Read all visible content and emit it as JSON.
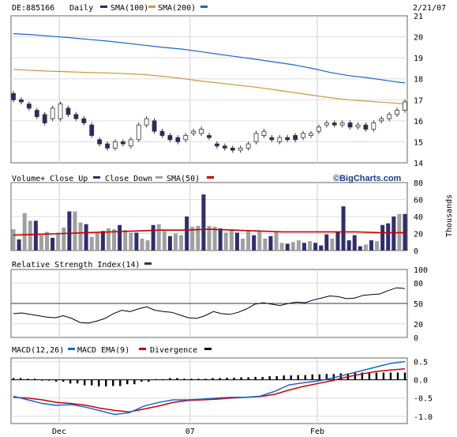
{
  "header": {
    "symbol": "DE:885166",
    "period": "Daily",
    "date": "2/21/07"
  },
  "colors": {
    "sma100": "#c89a3c",
    "sma200": "#1c64d6",
    "up": "#ffffff",
    "down": "#2a2a6a",
    "sma50vol": "#cc0000",
    "gray": "#a0a0a0",
    "navy": "#2e2e6e",
    "macd": "#1c64d6",
    "macdema": "#cc0000",
    "divergence": "#000000"
  },
  "price_panel": {
    "legend": [
      {
        "label": "SMA(100)",
        "color_key": "navy"
      },
      {
        "label": "SMA(200)",
        "color_key": "sma100"
      },
      {
        "label": "",
        "color_key": "sma200"
      }
    ]
  },
  "volume_panel": {
    "legend": [
      {
        "label": "Volume+ Close Up",
        "color_key": "gray"
      },
      {
        "label": "Close Down",
        "color_key": "navy"
      },
      {
        "label": "SMA(50)",
        "color_key": "gray"
      },
      {
        "label": "",
        "color_key": "sma50vol"
      }
    ],
    "brand": "©BigCharts.com",
    "unit": "Thousands"
  },
  "rsi_panel": {
    "label": "Relative Strength Index(14)"
  },
  "macd_panel": {
    "legend": [
      {
        "label": "MACD(12,26)",
        "color_key": "macd"
      },
      {
        "label": "MACD EMA(9)",
        "color_key": "macdema"
      },
      {
        "label": "Divergence",
        "color_key": "divergence"
      }
    ]
  },
  "chart_data": [
    {
      "type": "candlestick",
      "title": "DE:885166 Daily",
      "ylim": [
        14,
        21
      ],
      "yticks": [
        14,
        15,
        16,
        17,
        18,
        19,
        20,
        21
      ],
      "xticks": [
        {
          "label": "Dec",
          "index": 14
        },
        {
          "label": "07",
          "index": 50
        },
        {
          "label": "Feb",
          "index": 85
        }
      ],
      "series": [
        {
          "name": "SMA(100)",
          "values": [
            18.45,
            18.4,
            18.36,
            18.33,
            18.3,
            18.28,
            18.25,
            18.2,
            18.12,
            18.02,
            17.9,
            17.8,
            17.7,
            17.6,
            17.48,
            17.35,
            17.22,
            17.1,
            17.0,
            16.93,
            16.87,
            16.8
          ]
        },
        {
          "name": "SMA(200)",
          "values": [
            20.15,
            20.1,
            20.03,
            19.96,
            19.88,
            19.8,
            19.7,
            19.6,
            19.5,
            19.42,
            19.3,
            19.17,
            19.05,
            18.93,
            18.8,
            18.67,
            18.5,
            18.3,
            18.15,
            18.05,
            17.92,
            17.8
          ]
        }
      ],
      "candles": [
        [
          17.3,
          17.0
        ],
        [
          17.0,
          16.9
        ],
        [
          16.8,
          16.6
        ],
        [
          16.5,
          16.2
        ],
        [
          16.3,
          15.9
        ],
        [
          16.1,
          16.6
        ],
        [
          16.1,
          16.8
        ],
        [
          16.6,
          16.3
        ],
        [
          16.3,
          16.1
        ],
        [
          16.1,
          15.9
        ],
        [
          15.8,
          15.3
        ],
        [
          15.1,
          14.9
        ],
        [
          14.9,
          14.7
        ],
        [
          14.7,
          15.0
        ],
        [
          15.0,
          14.9
        ],
        [
          14.8,
          15.1
        ],
        [
          15.1,
          15.8
        ],
        [
          15.8,
          16.1
        ],
        [
          16.0,
          15.5
        ],
        [
          15.5,
          15.3
        ],
        [
          15.3,
          15.1
        ],
        [
          15.2,
          15.0
        ],
        [
          15.1,
          15.3
        ],
        [
          15.4,
          15.5
        ],
        [
          15.4,
          15.6
        ],
        [
          15.3,
          15.2
        ],
        [
          14.9,
          14.8
        ],
        [
          14.8,
          14.7
        ],
        [
          14.7,
          14.6
        ],
        [
          14.6,
          14.7
        ],
        [
          14.7,
          14.9
        ],
        [
          15.0,
          15.4
        ],
        [
          15.3,
          15.5
        ],
        [
          15.2,
          15.1
        ],
        [
          15.0,
          15.2
        ],
        [
          15.2,
          15.1
        ],
        [
          15.3,
          15.1
        ],
        [
          15.2,
          15.4
        ],
        [
          15.3,
          15.4
        ],
        [
          15.5,
          15.7
        ],
        [
          15.8,
          15.9
        ],
        [
          15.9,
          15.8
        ],
        [
          15.8,
          15.9
        ],
        [
          15.9,
          15.7
        ],
        [
          15.7,
          15.8
        ],
        [
          15.8,
          15.6
        ],
        [
          15.6,
          15.9
        ],
        [
          16.0,
          16.1
        ],
        [
          16.1,
          16.3
        ],
        [
          16.3,
          16.5
        ],
        [
          16.5,
          16.9
        ]
      ]
    },
    {
      "type": "bar",
      "title": "Volume",
      "ylim": [
        0,
        80
      ],
      "yticks": [
        0,
        20,
        40,
        60,
        80
      ],
      "series": [
        {
          "name": "Volume",
          "values": [
            25,
            13,
            44,
            35,
            35,
            18,
            22,
            15,
            21,
            27,
            46,
            46,
            33,
            31,
            16,
            22,
            23,
            26,
            25,
            30,
            24,
            21,
            21,
            14,
            12,
            30,
            31,
            23,
            17,
            20,
            18,
            40,
            28,
            29,
            66,
            29,
            28,
            26,
            21,
            25,
            21,
            14,
            23,
            18,
            23,
            14,
            17,
            22,
            9,
            8,
            10,
            12,
            9,
            11,
            9,
            6,
            19,
            14,
            22,
            52,
            12,
            18,
            5,
            7,
            12,
            11,
            30,
            32,
            40,
            43,
            43
          ]
        },
        {
          "name": "SMA(50)",
          "values": [
            18,
            19,
            20,
            21,
            22,
            23,
            24,
            24,
            25,
            24,
            23,
            22,
            22,
            22,
            22,
            21,
            21
          ]
        }
      ]
    },
    {
      "type": "line",
      "title": "Relative Strength Index(14)",
      "ylim": [
        0,
        100
      ],
      "yticks": [
        0,
        20,
        50,
        80,
        100
      ],
      "series": [
        {
          "name": "RSI(14)",
          "values": [
            35,
            36,
            34,
            32,
            30,
            29,
            32,
            28,
            22,
            21,
            24,
            28,
            35,
            40,
            38,
            42,
            45,
            40,
            38,
            37,
            33,
            29,
            28,
            32,
            38,
            35,
            34,
            37,
            42,
            49,
            51,
            49,
            47,
            50,
            52,
            51,
            55,
            58,
            61,
            60,
            57,
            58,
            62,
            63,
            64,
            69,
            73,
            72
          ]
        }
      ]
    },
    {
      "type": "line",
      "title": "MACD(12,26)",
      "ylim": [
        -1.2,
        0.6
      ],
      "yticks": [
        -1.0,
        -0.5,
        0.0,
        0.5
      ],
      "series": [
        {
          "name": "MACD",
          "values": [
            -0.45,
            -0.55,
            -0.65,
            -0.7,
            -0.68,
            -0.75,
            -0.85,
            -0.95,
            -0.9,
            -0.72,
            -0.62,
            -0.55,
            -0.55,
            -0.53,
            -0.5,
            -0.48,
            -0.48,
            -0.45,
            -0.32,
            -0.14,
            -0.08,
            -0.03,
            0.05,
            0.15,
            0.25,
            0.35,
            0.45,
            0.5
          ]
        },
        {
          "name": "MACD EMA(9)",
          "values": [
            -0.48,
            -0.5,
            -0.55,
            -0.62,
            -0.65,
            -0.7,
            -0.78,
            -0.84,
            -0.88,
            -0.8,
            -0.72,
            -0.62,
            -0.57,
            -0.55,
            -0.53,
            -0.5,
            -0.48,
            -0.46,
            -0.4,
            -0.28,
            -0.18,
            -0.1,
            -0.02,
            0.08,
            0.16,
            0.23,
            0.27,
            0.3
          ]
        },
        {
          "name": "Divergence",
          "values": [
            0.05,
            0.03,
            0.0,
            -0.05,
            -0.1,
            -0.15,
            -0.18,
            -0.17,
            -0.12,
            -0.05,
            0.02,
            0.05,
            0.03,
            0.03,
            0.05,
            0.06,
            0.07,
            0.08,
            0.1,
            0.12,
            0.13,
            0.15,
            0.16,
            0.18,
            0.2,
            0.2,
            0.2,
            0.2
          ]
        }
      ]
    }
  ]
}
